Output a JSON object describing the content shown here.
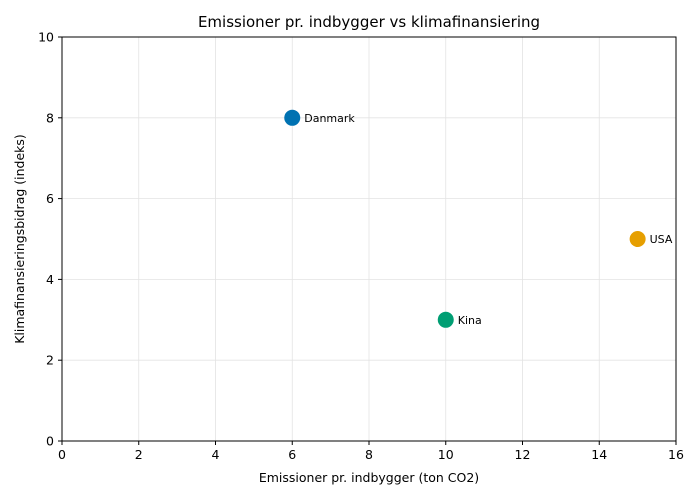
{
  "chart_data": {
    "type": "scatter",
    "title": "Emissioner pr. indbygger vs klimafinansiering",
    "xlabel": "Emissioner pr. indbygger (ton CO2)",
    "ylabel": "Klimafinansieringsbidrag (indeks)",
    "xlim": [
      0,
      16
    ],
    "ylim": [
      0,
      10
    ],
    "xticks": [
      0,
      2,
      4,
      6,
      8,
      10,
      12,
      14,
      16
    ],
    "yticks": [
      0,
      2,
      4,
      6,
      8,
      10
    ],
    "grid": true,
    "points": [
      {
        "label": "Danmark",
        "x": 6,
        "y": 8,
        "color": "#0072b2"
      },
      {
        "label": "USA",
        "x": 15,
        "y": 5,
        "color": "#e69f00"
      },
      {
        "label": "Kina",
        "x": 10,
        "y": 3,
        "color": "#009e73"
      }
    ]
  }
}
